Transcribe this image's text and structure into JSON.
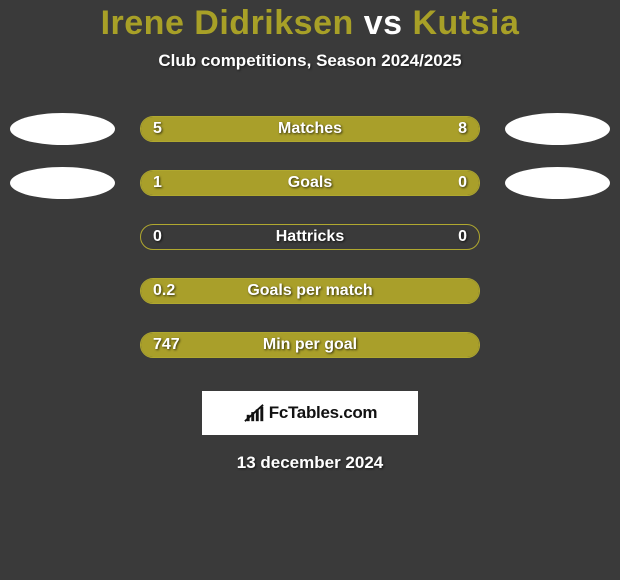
{
  "title": {
    "left": "Irene Didriksen",
    "vs": "vs",
    "right": "Kutsia"
  },
  "subtitle": "Club competitions, Season 2024/2025",
  "colors": {
    "bar_fill": "#a99f2a",
    "bar_border": "#b0a82f",
    "background": "#3a3a3a",
    "text": "#ffffff",
    "oval": "#ffffff"
  },
  "bars": [
    {
      "label": "Matches",
      "left_val": "5",
      "right_val": "8",
      "left_pct": 36,
      "right_pct": 64,
      "show_left_oval": true,
      "show_right_oval": true
    },
    {
      "label": "Goals",
      "left_val": "1",
      "right_val": "0",
      "left_pct": 78,
      "right_pct": 22,
      "show_left_oval": true,
      "show_right_oval": true
    },
    {
      "label": "Hattricks",
      "left_val": "0",
      "right_val": "0",
      "left_pct": 0,
      "right_pct": 0,
      "show_left_oval": false,
      "show_right_oval": false
    },
    {
      "label": "Goals per match",
      "left_val": "0.2",
      "right_val": "",
      "left_pct": 100,
      "right_pct": 0,
      "show_left_oval": false,
      "show_right_oval": false
    },
    {
      "label": "Min per goal",
      "left_val": "747",
      "right_val": "",
      "left_pct": 100,
      "right_pct": 0,
      "show_left_oval": false,
      "show_right_oval": false
    }
  ],
  "footer_brand": "FcTables.com",
  "date": "13 december 2024"
}
